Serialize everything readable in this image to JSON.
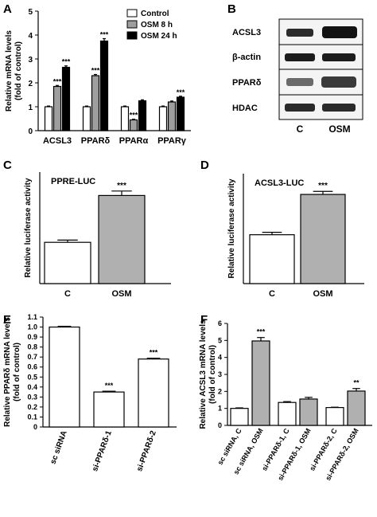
{
  "panels": {
    "A": "A",
    "B": "B",
    "C": "C",
    "D": "D",
    "E": "E",
    "F": "F"
  },
  "blot": {
    "labels": [
      "ACSL3",
      "β-actin",
      "PPARδ",
      "HDAC"
    ],
    "lanes": [
      "C",
      "OSM"
    ]
  },
  "chart_data": [
    {
      "panel": "A",
      "type": "bar",
      "ylabel": "Relative mRNA levels\n(fold of control)",
      "ylim": [
        0,
        5
      ],
      "yticks": [
        "0",
        "1",
        "2",
        "3",
        "4",
        "5"
      ],
      "categories": [
        "ACSL3",
        "PPARδ",
        "PPARα",
        "PPARγ"
      ],
      "series": [
        {
          "name": "Control",
          "color": "#ffffff",
          "values": [
            1.0,
            1.0,
            1.0,
            1.0
          ],
          "errors": [
            0.03,
            0.03,
            0.03,
            0.03
          ],
          "annotations": [
            "",
            "",
            "",
            ""
          ]
        },
        {
          "name": "OSM 8 h",
          "color": "#9e9e9e",
          "values": [
            1.85,
            2.3,
            0.45,
            1.2
          ],
          "errors": [
            0.04,
            0.05,
            0.03,
            0.04
          ],
          "annotations": [
            "***",
            "***",
            "***",
            ""
          ]
        },
        {
          "name": "OSM 24 h",
          "color": "#000000",
          "values": [
            2.65,
            3.75,
            1.25,
            1.4
          ],
          "errors": [
            0.06,
            0.1,
            0.04,
            0.04
          ],
          "annotations": [
            "***",
            "***",
            "",
            "***"
          ]
        }
      ],
      "legend": "top-right"
    },
    {
      "panel": "C",
      "type": "bar",
      "title": "PPRE-LUC",
      "ylabel": "Relative luciferase activity",
      "ylim": [
        0,
        1.0
      ],
      "categories": [
        "C",
        "OSM"
      ],
      "values": [
        0.37,
        0.79
      ],
      "errors": [
        0.02,
        0.04
      ],
      "colors": [
        "#ffffff",
        "#b0b0b0"
      ],
      "annotations": [
        "",
        "***"
      ]
    },
    {
      "panel": "D",
      "type": "bar",
      "title": "ACSL3-LUC",
      "ylabel": "Relative luciferase activity",
      "ylim": [
        0,
        3.6
      ],
      "categories": [
        "C",
        "OSM"
      ],
      "values": [
        1.6,
        2.92
      ],
      "errors": [
        0.08,
        0.1
      ],
      "colors": [
        "#ffffff",
        "#b0b0b0"
      ],
      "annotations": [
        "",
        "***"
      ]
    },
    {
      "panel": "E",
      "type": "bar",
      "ylabel": "Relative PPARδ mRNA levels\n(fold of control)",
      "ylim": [
        0,
        1.1
      ],
      "yticks": [
        "0",
        "0.1",
        "0.2",
        "0.3",
        "0.4",
        "0.5",
        "0.6",
        "0.7",
        "0.8",
        "0.9",
        "1.0",
        "1.1"
      ],
      "categories": [
        "sc siRNA",
        "si-PPARδ-1",
        "si-PPARδ-2"
      ],
      "values": [
        1.0,
        0.35,
        0.68
      ],
      "errors": [
        0.008,
        0.008,
        0.008
      ],
      "colors": [
        "#ffffff",
        "#ffffff",
        "#ffffff"
      ],
      "annotations": [
        "",
        "***",
        "***"
      ]
    },
    {
      "panel": "F",
      "type": "bar",
      "ylabel": "Relative ACSL3 mRNA levels\n(fold of control)",
      "ylim": [
        0,
        6
      ],
      "yticks": [
        "0",
        "1",
        "2",
        "3",
        "4",
        "5",
        "6"
      ],
      "categories": [
        "sc siRNA, C",
        "sc siRNA, OSM",
        "si-PPARδ-1, C",
        "si-PPARδ-1, OSM",
        "si-PPARδ-2, C",
        "si-PPARδ-2, OSM"
      ],
      "values": [
        1.0,
        4.97,
        1.35,
        1.55,
        1.05,
        2.02
      ],
      "errors": [
        0.03,
        0.2,
        0.05,
        0.1,
        0.02,
        0.15
      ],
      "colors": [
        "#ffffff",
        "#b0b0b0",
        "#ffffff",
        "#b0b0b0",
        "#ffffff",
        "#b0b0b0"
      ],
      "annotations": [
        "",
        "***",
        "",
        "",
        "",
        "**"
      ]
    }
  ]
}
